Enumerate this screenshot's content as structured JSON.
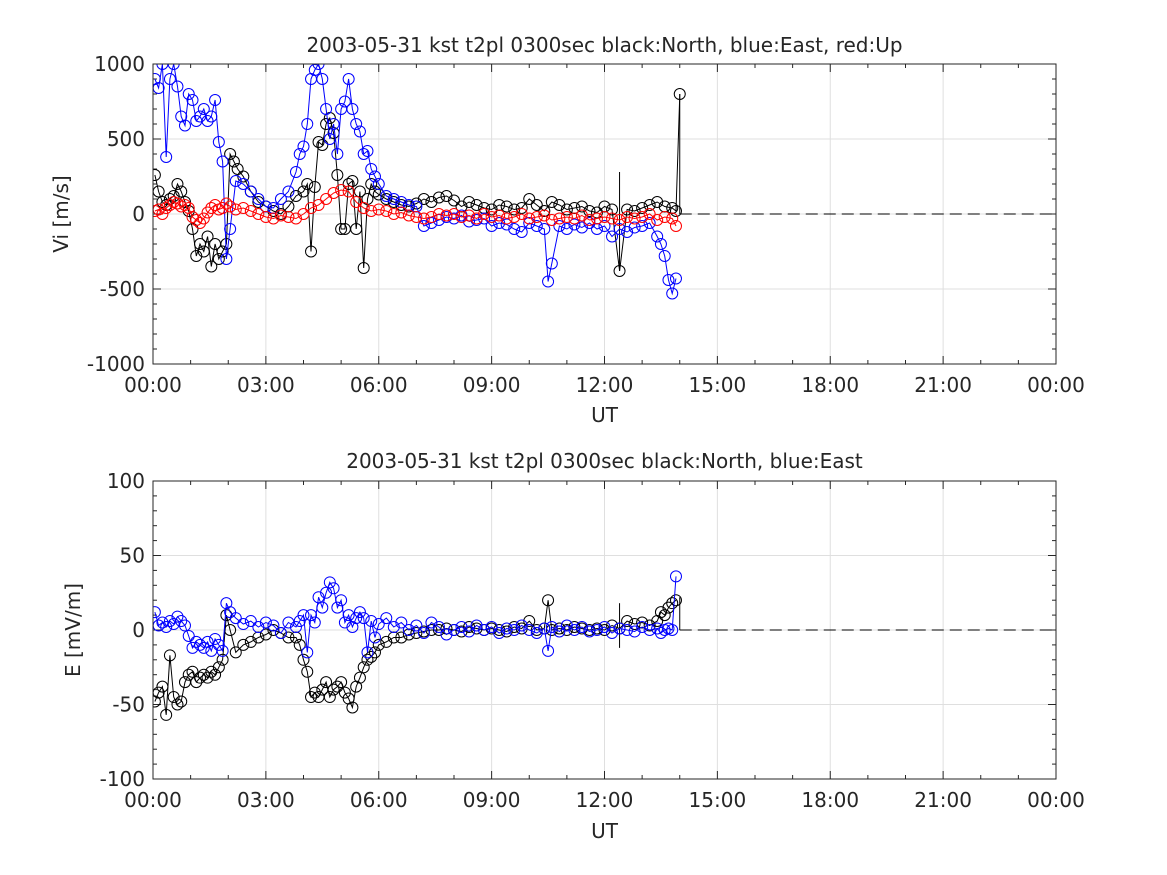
{
  "chart_data": [
    {
      "type": "scatter",
      "title": "2003-05-31 kst t2pl 0300sec black:North, blue:East, red:Up",
      "xlabel": "UT",
      "ylabel": "Vi [m/s]",
      "xlim": [
        0,
        24
      ],
      "ylim": [
        -1000,
        1000
      ],
      "grid": true,
      "xtick_labels": [
        "00:00",
        "03:00",
        "06:00",
        "09:00",
        "12:00",
        "15:00",
        "18:00",
        "21:00",
        "00:00"
      ],
      "ytick_labels": [
        "1000",
        "500",
        "0",
        "-500",
        "-1000"
      ],
      "xticks": [
        0,
        3,
        6,
        9,
        12,
        15,
        18,
        21,
        24
      ],
      "yticks": [
        1000,
        500,
        0,
        -500,
        -1000
      ],
      "zero_line": {
        "from_x": 14,
        "to_x": 24,
        "value": 0,
        "style": "dashed"
      },
      "series": [
        {
          "name": "North",
          "color": "#000000",
          "x": [
            0.05,
            0.15,
            0.25,
            0.35,
            0.45,
            0.55,
            0.65,
            0.75,
            0.85,
            0.95,
            1.05,
            1.15,
            1.25,
            1.35,
            1.45,
            1.55,
            1.65,
            1.75,
            1.85,
            1.95,
            2.05,
            2.15,
            2.25,
            2.4,
            2.6,
            2.8,
            3.0,
            3.2,
            3.4,
            3.6,
            3.8,
            4.0,
            4.1,
            4.2,
            4.3,
            4.4,
            4.5,
            4.6,
            4.7,
            4.8,
            4.9,
            5.0,
            5.1,
            5.2,
            5.3,
            5.4,
            5.5,
            5.6,
            5.7,
            5.8,
            5.9,
            6.0,
            6.2,
            6.4,
            6.6,
            6.8,
            7.0,
            7.2,
            7.4,
            7.6,
            7.8,
            8.0,
            8.2,
            8.4,
            8.6,
            8.8,
            9.0,
            9.2,
            9.4,
            9.6,
            9.8,
            10.0,
            10.2,
            10.4,
            10.6,
            10.8,
            11.0,
            11.2,
            11.4,
            11.6,
            11.8,
            12.0,
            12.2,
            12.4,
            12.6,
            12.8,
            13.0,
            13.2,
            13.4,
            13.6,
            13.8,
            13.9,
            14.0
          ],
          "y": [
            260,
            150,
            80,
            60,
            100,
            120,
            200,
            150,
            80,
            20,
            -100,
            -280,
            -200,
            -250,
            -150,
            -350,
            -200,
            -300,
            -250,
            -200,
            400,
            350,
            300,
            250,
            150,
            80,
            50,
            20,
            0,
            50,
            120,
            150,
            200,
            -250,
            180,
            480,
            460,
            600,
            640,
            540,
            260,
            -100,
            -100,
            200,
            220,
            -100,
            150,
            -360,
            100,
            200,
            150,
            130,
            100,
            80,
            60,
            50,
            70,
            100,
            80,
            110,
            120,
            90,
            50,
            80,
            60,
            40,
            30,
            60,
            50,
            30,
            40,
            100,
            60,
            20,
            80,
            60,
            30,
            40,
            50,
            20,
            10,
            50,
            30,
            -380,
            30,
            20,
            40,
            60,
            80,
            50,
            40,
            20,
            800
          ]
        },
        {
          "name": "East",
          "color": "#0000ff",
          "x": [
            0.05,
            0.15,
            0.25,
            0.35,
            0.45,
            0.55,
            0.65,
            0.75,
            0.85,
            0.95,
            1.05,
            1.15,
            1.25,
            1.35,
            1.45,
            1.55,
            1.65,
            1.75,
            1.85,
            1.95,
            2.05,
            2.2,
            2.4,
            2.6,
            2.8,
            3.0,
            3.2,
            3.4,
            3.6,
            3.8,
            3.9,
            4.0,
            4.1,
            4.2,
            4.3,
            4.4,
            4.5,
            4.6,
            4.7,
            4.8,
            4.9,
            5.0,
            5.1,
            5.2,
            5.3,
            5.4,
            5.5,
            5.6,
            5.7,
            5.8,
            5.9,
            6.0,
            6.2,
            6.4,
            6.6,
            6.8,
            7.0,
            7.2,
            7.4,
            7.6,
            7.8,
            8.0,
            8.2,
            8.4,
            8.6,
            8.8,
            9.0,
            9.2,
            9.4,
            9.6,
            9.8,
            10.0,
            10.2,
            10.4,
            10.5,
            10.6,
            10.8,
            11.0,
            11.2,
            11.4,
            11.6,
            11.8,
            12.0,
            12.2,
            12.4,
            12.6,
            12.8,
            13.0,
            13.2,
            13.4,
            13.5,
            13.6,
            13.7,
            13.8,
            13.9
          ],
          "y": [
            900,
            840,
            1000,
            380,
            900,
            1000,
            850,
            650,
            590,
            800,
            760,
            620,
            650,
            700,
            620,
            650,
            760,
            480,
            350,
            -300,
            -100,
            220,
            200,
            150,
            100,
            50,
            40,
            100,
            150,
            280,
            400,
            450,
            600,
            900,
            960,
            1000,
            900,
            700,
            500,
            600,
            400,
            700,
            750,
            900,
            700,
            600,
            550,
            400,
            420,
            300,
            250,
            200,
            120,
            100,
            80,
            60,
            50,
            -80,
            -60,
            -40,
            -20,
            -30,
            -10,
            -50,
            -40,
            -30,
            -80,
            -60,
            -70,
            -100,
            -120,
            -60,
            -80,
            -100,
            -450,
            -330,
            -80,
            -100,
            -70,
            -90,
            -60,
            -100,
            -80,
            -150,
            -100,
            -120,
            -90,
            -80,
            -60,
            -150,
            -200,
            -280,
            -440,
            -530,
            -430
          ]
        },
        {
          "name": "Up",
          "color": "#ff0000",
          "x": [
            0.05,
            0.15,
            0.25,
            0.35,
            0.45,
            0.55,
            0.65,
            0.75,
            0.85,
            0.95,
            1.05,
            1.15,
            1.25,
            1.35,
            1.45,
            1.55,
            1.65,
            1.75,
            1.85,
            1.95,
            2.05,
            2.2,
            2.4,
            2.6,
            2.8,
            3.0,
            3.2,
            3.4,
            3.6,
            3.8,
            4.0,
            4.2,
            4.4,
            4.6,
            4.8,
            5.0,
            5.2,
            5.4,
            5.6,
            5.8,
            6.0,
            6.2,
            6.4,
            6.6,
            6.8,
            7.0,
            7.2,
            7.4,
            7.6,
            7.8,
            8.0,
            8.2,
            8.4,
            8.6,
            8.8,
            9.0,
            9.2,
            9.4,
            9.6,
            9.8,
            10.0,
            10.2,
            10.4,
            10.6,
            10.8,
            11.0,
            11.2,
            11.4,
            11.6,
            11.8,
            12.0,
            12.2,
            12.4,
            12.6,
            12.8,
            13.0,
            13.2,
            13.4,
            13.6,
            13.8,
            13.9
          ],
          "y": [
            20,
            30,
            0,
            40,
            60,
            80,
            70,
            50,
            60,
            40,
            -20,
            -40,
            -60,
            -30,
            10,
            40,
            60,
            30,
            40,
            70,
            50,
            30,
            40,
            20,
            0,
            -20,
            -30,
            -10,
            -20,
            -30,
            0,
            40,
            60,
            100,
            140,
            160,
            150,
            80,
            40,
            20,
            30,
            20,
            0,
            10,
            -10,
            -20,
            -30,
            -20,
            0,
            -10,
            0,
            -20,
            -10,
            -30,
            0,
            -20,
            -10,
            -30,
            -20,
            0,
            -30,
            -20,
            -10,
            -40,
            -30,
            -20,
            -30,
            -10,
            -40,
            -30,
            -20,
            -30,
            -40,
            -20,
            -30,
            -20,
            0,
            -40,
            -20,
            -30,
            -80
          ]
        }
      ],
      "vlines": [
        {
          "x": 12.4,
          "y1": -380,
          "y2": 280
        },
        {
          "x": 14.0,
          "y1": 0,
          "y2": 800
        }
      ]
    },
    {
      "type": "scatter",
      "title": "2003-05-31 kst t2pl 0300sec black:North, blue:East",
      "xlabel": "UT",
      "ylabel": "E [mV/m]",
      "xlim": [
        0,
        24
      ],
      "ylim": [
        -100,
        100
      ],
      "grid": true,
      "xtick_labels": [
        "00:00",
        "03:00",
        "06:00",
        "09:00",
        "12:00",
        "15:00",
        "18:00",
        "21:00",
        "00:00"
      ],
      "ytick_labels": [
        "100",
        "50",
        "0",
        "-50",
        "-100"
      ],
      "xticks": [
        0,
        3,
        6,
        9,
        12,
        15,
        18,
        21,
        24
      ],
      "yticks": [
        100,
        50,
        0,
        -50,
        -100
      ],
      "zero_line": {
        "from_x": 14,
        "to_x": 24,
        "value": 0,
        "style": "dashed"
      },
      "series": [
        {
          "name": "North",
          "color": "#000000",
          "x": [
            0.05,
            0.15,
            0.25,
            0.35,
            0.45,
            0.55,
            0.65,
            0.75,
            0.85,
            0.95,
            1.05,
            1.15,
            1.25,
            1.35,
            1.45,
            1.55,
            1.65,
            1.75,
            1.85,
            1.95,
            2.05,
            2.2,
            2.4,
            2.6,
            2.8,
            3.0,
            3.2,
            3.4,
            3.6,
            3.8,
            3.9,
            4.0,
            4.1,
            4.2,
            4.3,
            4.4,
            4.5,
            4.6,
            4.7,
            4.8,
            4.9,
            5.0,
            5.1,
            5.2,
            5.3,
            5.4,
            5.5,
            5.6,
            5.7,
            5.8,
            5.9,
            6.0,
            6.2,
            6.4,
            6.6,
            6.8,
            7.0,
            7.2,
            7.4,
            7.6,
            7.8,
            8.0,
            8.2,
            8.4,
            8.6,
            8.8,
            9.0,
            9.2,
            9.4,
            9.6,
            9.8,
            10.0,
            10.2,
            10.4,
            10.5,
            10.6,
            10.8,
            11.0,
            11.2,
            11.4,
            11.6,
            11.8,
            12.0,
            12.2,
            12.4,
            12.6,
            12.8,
            13.0,
            13.2,
            13.4,
            13.5,
            13.6,
            13.7,
            13.8,
            13.9
          ],
          "y": [
            -48,
            -42,
            -38,
            -57,
            -17,
            -45,
            -50,
            -48,
            -35,
            -30,
            -28,
            -35,
            -32,
            -30,
            -32,
            -28,
            -30,
            -25,
            -20,
            10,
            0,
            -15,
            -10,
            -8,
            -5,
            -3,
            0,
            -2,
            -5,
            -5,
            -10,
            -20,
            -28,
            -45,
            -42,
            -45,
            -40,
            -35,
            -45,
            -40,
            -38,
            -35,
            -42,
            -46,
            -52,
            -38,
            -32,
            -25,
            -20,
            -18,
            -15,
            -10,
            -8,
            -5,
            -5,
            -3,
            -2,
            -1,
            0,
            0,
            1,
            0,
            -1,
            2,
            1,
            0,
            1,
            0,
            -1,
            2,
            1,
            6,
            0,
            1,
            20,
            0,
            1,
            0,
            2,
            1,
            0,
            1,
            0,
            3,
            1,
            6,
            4,
            5,
            3,
            6,
            12,
            10,
            15,
            18,
            20
          ]
        },
        {
          "name": "East",
          "color": "#0000ff",
          "x": [
            0.05,
            0.15,
            0.25,
            0.35,
            0.45,
            0.55,
            0.65,
            0.75,
            0.85,
            0.95,
            1.05,
            1.15,
            1.25,
            1.35,
            1.45,
            1.55,
            1.65,
            1.75,
            1.85,
            1.95,
            2.05,
            2.2,
            2.4,
            2.6,
            2.8,
            3.0,
            3.2,
            3.4,
            3.6,
            3.8,
            3.9,
            4.0,
            4.1,
            4.2,
            4.3,
            4.4,
            4.5,
            4.6,
            4.7,
            4.8,
            4.9,
            5.0,
            5.1,
            5.2,
            5.3,
            5.4,
            5.5,
            5.6,
            5.7,
            5.8,
            5.9,
            6.0,
            6.2,
            6.4,
            6.6,
            6.8,
            7.0,
            7.2,
            7.4,
            7.6,
            7.8,
            8.0,
            8.2,
            8.4,
            8.6,
            8.8,
            9.0,
            9.2,
            9.4,
            9.6,
            9.8,
            10.0,
            10.2,
            10.4,
            10.5,
            10.6,
            10.8,
            11.0,
            11.2,
            11.4,
            11.6,
            11.8,
            12.0,
            12.2,
            12.4,
            12.6,
            12.8,
            13.0,
            13.2,
            13.4,
            13.5,
            13.6,
            13.7,
            13.8,
            13.9
          ],
          "y": [
            12,
            3,
            5,
            2,
            6,
            4,
            9,
            6,
            3,
            -4,
            -12,
            -8,
            -10,
            -12,
            -8,
            -14,
            -6,
            -10,
            -14,
            18,
            12,
            8,
            4,
            6,
            2,
            5,
            3,
            -2,
            5,
            2,
            6,
            10,
            -15,
            10,
            5,
            22,
            15,
            25,
            32,
            28,
            15,
            20,
            5,
            10,
            2,
            8,
            12,
            8,
            -15,
            6,
            -5,
            4,
            8,
            2,
            5,
            0,
            3,
            -2,
            5,
            2,
            -3,
            0,
            2,
            -1,
            3,
            0,
            2,
            -2,
            1,
            0,
            3,
            0,
            -2,
            1,
            -14,
            2,
            -1,
            3,
            0,
            2,
            -1,
            0,
            2,
            -2,
            1,
            0,
            -1,
            2,
            0,
            1,
            -2,
            0,
            1,
            0,
            36
          ]
        }
      ],
      "vlines": [
        {
          "x": 12.4,
          "y1": -12,
          "y2": 18
        },
        {
          "x": 14.0,
          "y1": 0,
          "y2": 22
        }
      ]
    }
  ]
}
